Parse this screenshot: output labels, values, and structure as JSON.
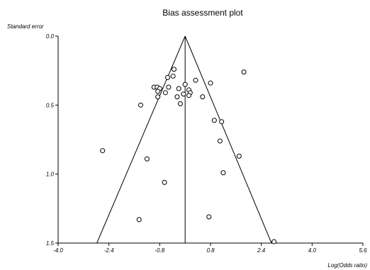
{
  "chart_data": {
    "type": "scatter",
    "title": "Bias assessment plot",
    "xlabel": "Log(Odds ratio)",
    "ylabel": "Standard error",
    "xlim": [
      -4.0,
      5.6
    ],
    "ylim": [
      0.0,
      1.5
    ],
    "y_inverted": true,
    "x_ticks": [
      "-4.0",
      "-2.4",
      "-0.8",
      "0.8",
      "2.4",
      "4.0",
      "5.6"
    ],
    "x_tick_values": [
      -4.0,
      -2.4,
      -0.8,
      0.8,
      2.4,
      4.0,
      5.6
    ],
    "y_ticks": [
      "0.0",
      "0.5",
      "1.0",
      "1.5"
    ],
    "y_tick_values": [
      0.0,
      0.5,
      1.0,
      1.5
    ],
    "pooled_estimate": 0.0,
    "funnel": {
      "apex": [
        0.0,
        0.0
      ],
      "left_at_1_5": [
        -2.78,
        1.5
      ],
      "right_at_1_5": [
        2.72,
        1.5
      ]
    },
    "points": [
      {
        "x": 1.85,
        "y": 0.26
      },
      {
        "x": -0.35,
        "y": 0.24
      },
      {
        "x": -0.38,
        "y": 0.29
      },
      {
        "x": -0.55,
        "y": 0.3
      },
      {
        "x": 0.33,
        "y": 0.32
      },
      {
        "x": 0.0,
        "y": 0.35
      },
      {
        "x": 0.8,
        "y": 0.34
      },
      {
        "x": -0.52,
        "y": 0.37
      },
      {
        "x": -0.98,
        "y": 0.37
      },
      {
        "x": -0.88,
        "y": 0.37
      },
      {
        "x": -0.8,
        "y": 0.38
      },
      {
        "x": -0.2,
        "y": 0.38
      },
      {
        "x": 0.12,
        "y": 0.39
      },
      {
        "x": -0.86,
        "y": 0.4
      },
      {
        "x": 0.16,
        "y": 0.41
      },
      {
        "x": -0.62,
        "y": 0.41
      },
      {
        "x": -0.05,
        "y": 0.42
      },
      {
        "x": 0.12,
        "y": 0.43
      },
      {
        "x": -0.86,
        "y": 0.44
      },
      {
        "x": -0.25,
        "y": 0.44
      },
      {
        "x": 0.55,
        "y": 0.44
      },
      {
        "x": -0.15,
        "y": 0.49
      },
      {
        "x": -1.4,
        "y": 0.5
      },
      {
        "x": 0.92,
        "y": 0.61
      },
      {
        "x": 1.15,
        "y": 0.62
      },
      {
        "x": 1.1,
        "y": 0.76
      },
      {
        "x": -2.6,
        "y": 0.83
      },
      {
        "x": 1.7,
        "y": 0.87
      },
      {
        "x": -1.2,
        "y": 0.89
      },
      {
        "x": 1.2,
        "y": 0.99
      },
      {
        "x": -0.65,
        "y": 1.06
      },
      {
        "x": 0.75,
        "y": 1.31
      },
      {
        "x": -1.45,
        "y": 1.33
      },
      {
        "x": 2.8,
        "y": 1.49
      }
    ]
  }
}
